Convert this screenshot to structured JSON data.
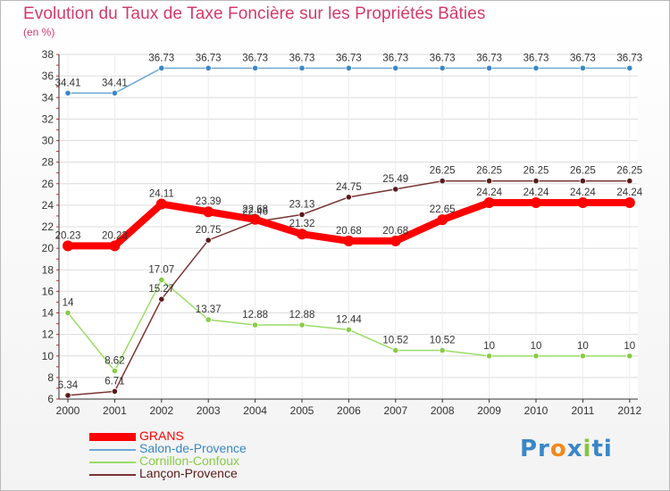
{
  "chart_data": {
    "type": "line",
    "title": "Evolution du Taux de Taxe Foncière sur les Propriétés Bâties",
    "ylabel": "(en %)",
    "xlabel": "",
    "categories": [
      "2000",
      "2001",
      "2002",
      "2003",
      "2004",
      "2005",
      "2006",
      "2007",
      "2008",
      "2009",
      "2010",
      "2011",
      "2012"
    ],
    "ylim": [
      6,
      38
    ],
    "yticks": [
      6,
      8,
      10,
      12,
      14,
      16,
      18,
      20,
      22,
      24,
      26,
      28,
      30,
      32,
      34,
      36,
      38
    ],
    "grid": "horizontal",
    "legend_position": "bottom-left",
    "series": [
      {
        "name": "GRANS",
        "color": "#ff0000",
        "line_width": "thick",
        "values": [
          20.23,
          20.23,
          24.11,
          23.39,
          22.68,
          21.32,
          20.68,
          20.68,
          22.65,
          24.24,
          24.24,
          24.24,
          24.24
        ],
        "labels": [
          "20.23",
          "20.23",
          "24.11",
          "23.39",
          "22.68",
          "21.32",
          "20.68",
          "20.68",
          "22.65",
          "24.24",
          "24.24",
          "24.24",
          "24.24"
        ]
      },
      {
        "name": "Salon-de-Provence",
        "color": "#6fa8d6",
        "marker_color": "#3a87c8",
        "values": [
          34.41,
          34.41,
          36.73,
          36.73,
          36.73,
          36.73,
          36.73,
          36.73,
          36.73,
          36.73,
          36.73,
          36.73,
          36.73
        ],
        "labels": [
          "34.41",
          "34.41",
          "36.73",
          "36.73",
          "36.73",
          "36.73",
          "36.73",
          "36.73",
          "36.73",
          "36.73",
          "36.73",
          "36.73",
          "36.73"
        ]
      },
      {
        "name": "Cornillon-Confoux",
        "color": "#99dd66",
        "marker_color": "#88cc44",
        "values": [
          14,
          8.62,
          17.07,
          13.37,
          12.88,
          12.88,
          12.44,
          10.52,
          10.52,
          10,
          10,
          10,
          10
        ],
        "labels": [
          "14",
          "8.62",
          "17.07",
          "13.37",
          "12.88",
          "12.88",
          "12.44",
          "10.52",
          "10.52",
          "10",
          "10",
          "10",
          "10"
        ]
      },
      {
        "name": "Lançon-Provence",
        "color": "#7a3434",
        "marker_color": "#5a1a1a",
        "values": [
          6.34,
          6.71,
          15.27,
          20.75,
          22.46,
          23.13,
          24.75,
          25.49,
          26.25,
          26.25,
          26.25,
          26.25,
          26.25
        ],
        "labels": [
          "6.34",
          "6.71",
          "15.27",
          "20.75",
          "22.46",
          "23.13",
          "24.75",
          "25.49",
          "26.25",
          "26.25",
          "26.25",
          "26.25",
          "26.25"
        ]
      }
    ]
  },
  "logo": {
    "parts": [
      {
        "text": "Pr",
        "color": "#3a87c8"
      },
      {
        "text": "o",
        "color": "#f08a1c"
      },
      {
        "text": "x",
        "color": "#3a87c8"
      },
      {
        "text": "i",
        "color": "#8ac440"
      },
      {
        "text": "ti",
        "color": "#3a87c8"
      }
    ]
  }
}
